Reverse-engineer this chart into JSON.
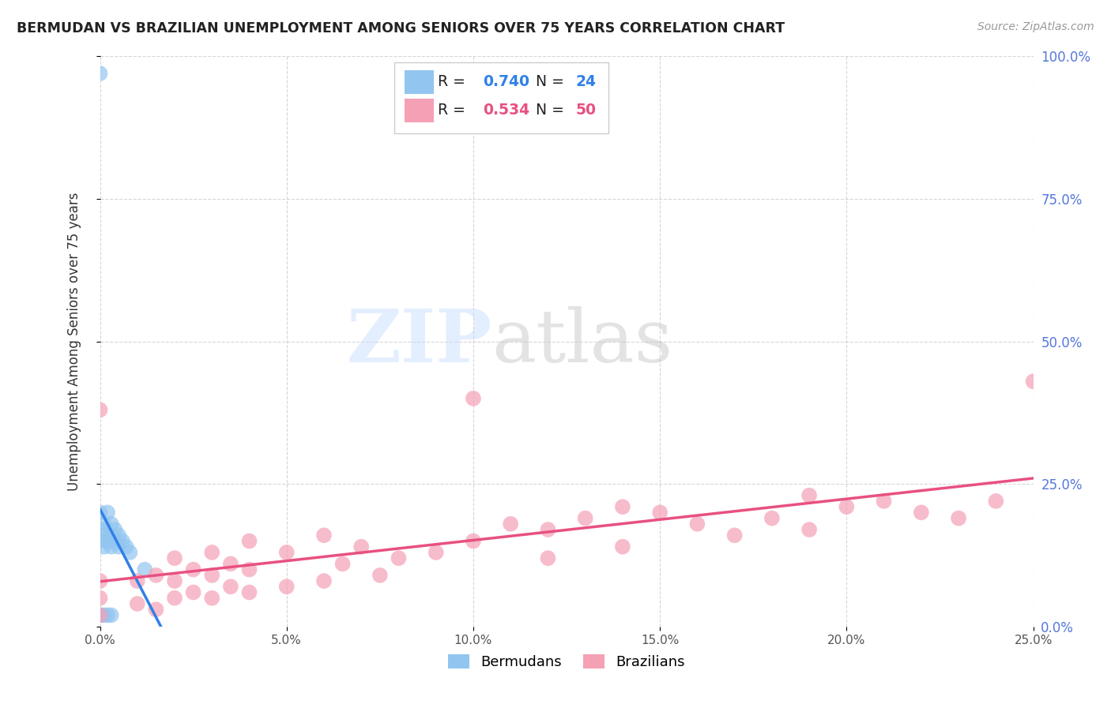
{
  "title": "BERMUDAN VS BRAZILIAN UNEMPLOYMENT AMONG SENIORS OVER 75 YEARS CORRELATION CHART",
  "source": "Source: ZipAtlas.com",
  "ylabel": "Unemployment Among Seniors over 75 years",
  "xlim": [
    0,
    0.25
  ],
  "ylim": [
    0,
    1.0
  ],
  "xticks": [
    0.0,
    0.05,
    0.1,
    0.15,
    0.2,
    0.25
  ],
  "yticks": [
    0.0,
    0.25,
    0.5,
    0.75,
    1.0
  ],
  "R_bermuda": 0.74,
  "N_bermuda": 24,
  "R_brazil": 0.534,
  "N_brazil": 50,
  "bermuda_color": "#92C5F0",
  "brazil_color": "#F4A0B5",
  "bermuda_line_color": "#3080E8",
  "brazil_line_color": "#E85080",
  "tick_label_color": "#5577DD",
  "watermark_color": "#C8DEFF",
  "bermuda_x": [
    0.0,
    0.0,
    0.0,
    0.0,
    0.0,
    0.001,
    0.001,
    0.001,
    0.001,
    0.002,
    0.002,
    0.002,
    0.003,
    0.003,
    0.003,
    0.003,
    0.004,
    0.004,
    0.005,
    0.005,
    0.006,
    0.007,
    0.008,
    0.012
  ],
  "bermuda_y": [
    0.97,
    0.2,
    0.17,
    0.15,
    0.02,
    0.18,
    0.16,
    0.14,
    0.02,
    0.2,
    0.15,
    0.02,
    0.18,
    0.16,
    0.14,
    0.02,
    0.17,
    0.15,
    0.16,
    0.14,
    0.15,
    0.14,
    0.13,
    0.1
  ],
  "brazil_x": [
    0.0,
    0.0,
    0.0,
    0.0,
    0.01,
    0.01,
    0.015,
    0.015,
    0.02,
    0.02,
    0.02,
    0.025,
    0.025,
    0.03,
    0.03,
    0.03,
    0.035,
    0.035,
    0.04,
    0.04,
    0.04,
    0.05,
    0.05,
    0.06,
    0.06,
    0.065,
    0.07,
    0.075,
    0.08,
    0.09,
    0.1,
    0.1,
    0.11,
    0.12,
    0.12,
    0.13,
    0.14,
    0.14,
    0.15,
    0.16,
    0.17,
    0.18,
    0.19,
    0.19,
    0.2,
    0.21,
    0.22,
    0.23,
    0.24,
    0.25
  ],
  "brazil_y": [
    0.38,
    0.08,
    0.05,
    0.02,
    0.08,
    0.04,
    0.09,
    0.03,
    0.12,
    0.08,
    0.05,
    0.1,
    0.06,
    0.13,
    0.09,
    0.05,
    0.11,
    0.07,
    0.15,
    0.1,
    0.06,
    0.13,
    0.07,
    0.16,
    0.08,
    0.11,
    0.14,
    0.09,
    0.12,
    0.13,
    0.4,
    0.15,
    0.18,
    0.17,
    0.12,
    0.19,
    0.21,
    0.14,
    0.2,
    0.18,
    0.16,
    0.19,
    0.23,
    0.17,
    0.21,
    0.22,
    0.2,
    0.19,
    0.22,
    0.43
  ],
  "background_color": "#FFFFFF",
  "grid_color": "#BBBBBB"
}
